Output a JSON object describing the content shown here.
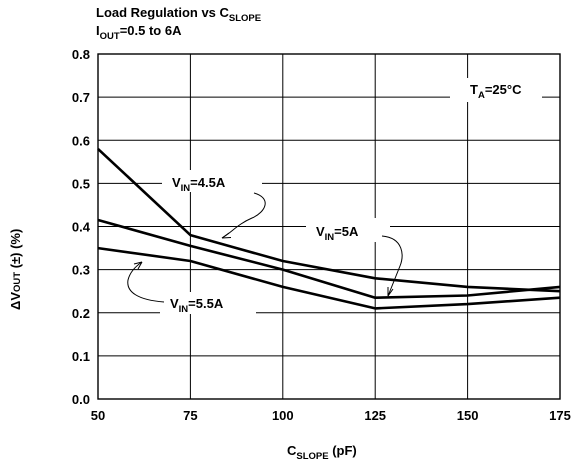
{
  "title": {
    "line1_main": "Load Regulation vs C",
    "line1_sub": "SLOPE",
    "line2_main": "I",
    "line2_sub": "OUT",
    "line2_rest": "=0.5 to 6A"
  },
  "chart_data": {
    "type": "line",
    "xlabel": "CSLOPE (pF)",
    "ylabel": "ΔVOUT (±) (%)",
    "xlim": [
      50,
      175
    ],
    "ylim": [
      0,
      0.8
    ],
    "xticks": [
      50,
      75,
      100,
      125,
      150,
      175
    ],
    "xtick_labels": [
      "50",
      "75",
      "100",
      "125",
      "150",
      "175"
    ],
    "yticks": [
      0,
      0.1,
      0.2,
      0.3,
      0.4,
      0.5,
      0.6,
      0.7,
      0.8
    ],
    "ytick_labels": [
      "0.0",
      "0.1",
      "0.2",
      "0.3",
      "0.4",
      "0.5",
      "0.6",
      "0.7",
      "0.8"
    ],
    "grid": true,
    "series": [
      {
        "name": "VIN=4.5A",
        "x": [
          50,
          75,
          87.5,
          100,
          125,
          150,
          175
        ],
        "y": [
          0.58,
          0.38,
          0.35,
          0.32,
          0.28,
          0.26,
          0.25
        ]
      },
      {
        "name": "VIN=5A",
        "x": [
          50,
          75,
          100,
          125,
          150,
          175
        ],
        "y": [
          0.415,
          0.355,
          0.3,
          0.235,
          0.24,
          0.26
        ]
      },
      {
        "name": "VIN=5.5A",
        "x": [
          50,
          75,
          100,
          125,
          150,
          175
        ],
        "y": [
          0.35,
          0.32,
          0.26,
          0.21,
          0.22,
          0.235
        ]
      }
    ]
  },
  "annotations": {
    "ta": {
      "main": "T",
      "sub": "A",
      "rest": "=25°C"
    },
    "vin45": {
      "main": "V",
      "sub": "IN",
      "rest": "=4.5A"
    },
    "vin5": {
      "main": "V",
      "sub": "IN",
      "rest": "=5A"
    },
    "vin55": {
      "main": "V",
      "sub": "IN",
      "rest": "=5.5A"
    }
  },
  "axis_text": {
    "x_main": "C",
    "x_sub": "SLOPE",
    "x_rest": " (pF)",
    "y_main": "ΔV",
    "y_sub": "OUT",
    "y_rest": " (±) (%)"
  }
}
